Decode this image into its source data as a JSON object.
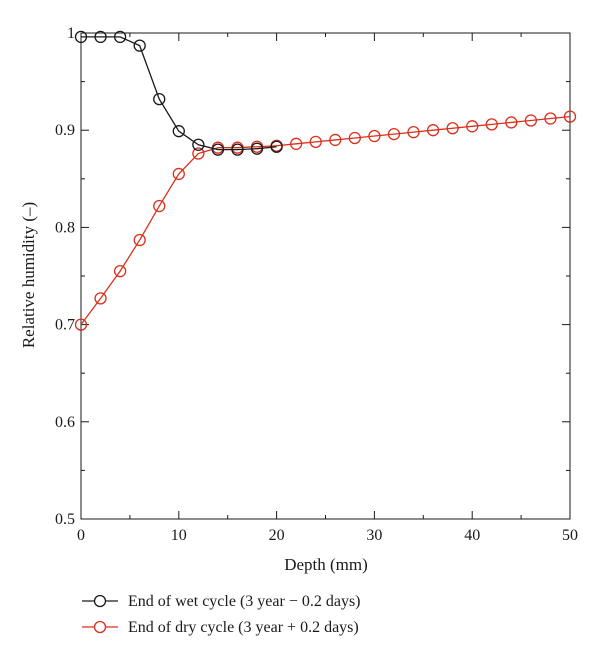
{
  "chart_data": {
    "type": "line",
    "xlabel": "Depth (mm)",
    "ylabel": "Relative humidity (–)",
    "xlim": [
      0,
      50
    ],
    "ylim": [
      0.5,
      1.0
    ],
    "xticks": [
      "0",
      "10",
      "20",
      "30",
      "40",
      "50"
    ],
    "yticks": [
      "0.5",
      "0.6",
      "0.7",
      "0.8",
      "0.9",
      "1"
    ],
    "grid": false,
    "legend_position": "below",
    "series": [
      {
        "name": "End of wet cycle (3 year − 0.2 days)",
        "color": "#1a1a1a",
        "marker": "open-circle",
        "x": [
          0,
          2,
          4,
          6,
          8,
          10,
          12,
          14,
          16,
          18,
          20
        ],
        "y": [
          0.996,
          0.996,
          0.996,
          0.987,
          0.932,
          0.899,
          0.885,
          0.88,
          0.88,
          0.881,
          0.883
        ]
      },
      {
        "name": "End of dry cycle (3 year + 0.2 days)",
        "color": "#d9301c",
        "marker": "open-circle",
        "x": [
          0,
          2,
          4,
          6,
          8,
          10,
          12,
          14,
          16,
          18,
          20,
          22,
          24,
          26,
          28,
          30,
          32,
          34,
          36,
          38,
          40,
          42,
          44,
          46,
          48,
          50
        ],
        "y": [
          0.7,
          0.727,
          0.755,
          0.787,
          0.822,
          0.855,
          0.876,
          0.882,
          0.882,
          0.883,
          0.884,
          0.886,
          0.888,
          0.89,
          0.892,
          0.894,
          0.896,
          0.898,
          0.9,
          0.902,
          0.904,
          0.906,
          0.908,
          0.91,
          0.912,
          0.914
        ]
      }
    ]
  }
}
